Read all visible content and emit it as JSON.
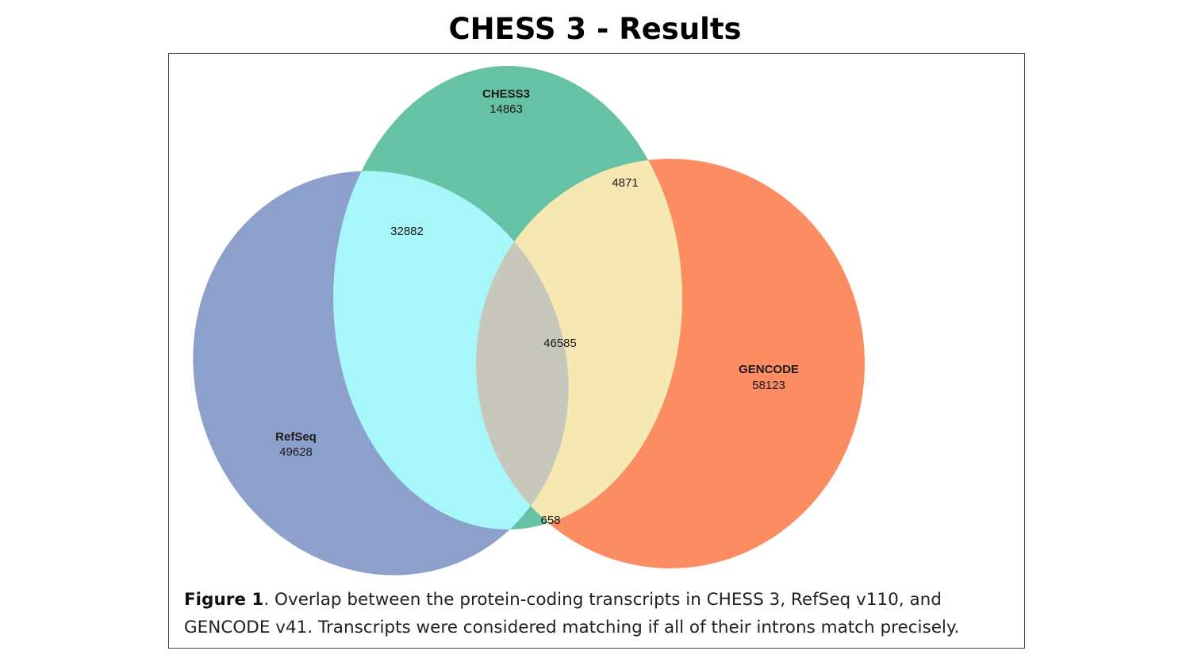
{
  "slide": {
    "title": "CHESS 3 - Results"
  },
  "venn": {
    "sets": [
      {
        "name": "CHESS3",
        "unique_count": "14863",
        "color": "#66c2a5"
      },
      {
        "name": "RefSeq",
        "unique_count": "49628",
        "color": "#8da0cb"
      },
      {
        "name": "GENCODE",
        "unique_count": "58123",
        "color": "#fc8d62"
      }
    ],
    "intersections": {
      "chess3_refseq": "32882",
      "chess3_gencode": "4871",
      "refseq_gencode": "658",
      "all_three": "46585"
    },
    "intersection_colors": {
      "chess3_refseq": "#a6f6fa",
      "chess3_gencode": "#f6e7b3",
      "refseq_gencode": "#f9c7cb",
      "all_three": "#c7c7bb"
    }
  },
  "caption": {
    "label": "Figure 1",
    "text": ". Overlap between the protein-coding transcripts in CHESS 3, RefSeq v110, and GENCODE v41. Transcripts were considered matching if all of their introns match precisely."
  }
}
